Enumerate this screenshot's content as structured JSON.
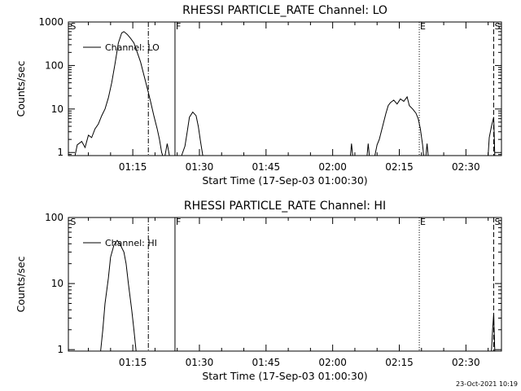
{
  "timestamp": "23-Oct-2021 10:19",
  "chart_data": [
    {
      "type": "line",
      "title": "RHESSI PARTICLE_RATE Channel: LO",
      "xlabel": "Start Time (17-Sep-03 01:00:30)",
      "ylabel": "Counts/sec",
      "yscale": "log",
      "ylim": [
        0.85,
        1000
      ],
      "xlim": [
        "01:00:30",
        "02:38:00"
      ],
      "x_ticks": [
        "01:15",
        "01:30",
        "01:45",
        "02:00",
        "02:15",
        "02:30"
      ],
      "y_ticks": [
        "1",
        "10",
        "100",
        "1000"
      ],
      "legend": {
        "label": "Channel: LO",
        "placement": "top-left"
      },
      "markers": [
        {
          "label": "S",
          "time": "01:00:45",
          "style": "none"
        },
        {
          "label": "",
          "time": "01:18:30",
          "style": "dashdot"
        },
        {
          "label": "F",
          "time": "01:24:30",
          "style": "solid"
        },
        {
          "label": "E",
          "time": "02:19:30",
          "style": "dotted"
        },
        {
          "label": "S",
          "time": "02:36:15",
          "style": "dashed"
        }
      ],
      "series": [
        {
          "name": "Channel: LO",
          "segments": [
            [
              [
                "01:02:00",
                0.85
              ],
              [
                "01:02:30",
                1.5
              ],
              [
                "01:03:30",
                1.8
              ],
              [
                "01:04:15",
                1.3
              ],
              [
                "01:05:00",
                2.5
              ],
              [
                "01:05:45",
                2.2
              ],
              [
                "01:06:30",
                3.5
              ],
              [
                "01:07:15",
                4.5
              ],
              [
                "01:08:00",
                7
              ],
              [
                "01:08:45",
                10
              ],
              [
                "01:09:30",
                18
              ],
              [
                "01:10:15",
                40
              ],
              [
                "01:11:00",
                110
              ],
              [
                "01:11:45",
                330
              ],
              [
                "01:12:30",
                560
              ],
              [
                "01:13:00",
                600
              ],
              [
                "01:13:45",
                520
              ],
              [
                "01:14:30",
                420
              ],
              [
                "01:15:15",
                330
              ],
              [
                "01:16:00",
                200
              ],
              [
                "01:16:45",
                120
              ],
              [
                "01:17:30",
                60
              ],
              [
                "01:18:15",
                30
              ],
              [
                "01:19:00",
                15
              ],
              [
                "01:19:45",
                7
              ],
              [
                "01:20:30",
                3.5
              ],
              [
                "01:21:00",
                2
              ],
              [
                "01:21:30",
                1
              ],
              [
                "01:21:45",
                0.85
              ]
            ],
            [
              [
                "01:22:15",
                0.85
              ],
              [
                "01:22:45",
                1.6
              ],
              [
                "01:23:15",
                0.85
              ]
            ],
            [
              [
                "01:26:00",
                0.85
              ],
              [
                "01:26:45",
                1.4
              ],
              [
                "01:27:15",
                3
              ],
              [
                "01:27:45",
                6.5
              ],
              [
                "01:28:30",
                8.5
              ],
              [
                "01:29:15",
                7
              ],
              [
                "01:29:45",
                4
              ],
              [
                "01:30:15",
                1.8
              ],
              [
                "01:30:45",
                0.85
              ]
            ],
            [
              [
                "02:04:00",
                0.85
              ],
              [
                "02:04:15",
                1.6
              ],
              [
                "02:04:30",
                0.85
              ]
            ],
            [
              [
                "02:07:45",
                0.85
              ],
              [
                "02:08:00",
                1.6
              ],
              [
                "02:08:15",
                0.85
              ]
            ],
            [
              [
                "02:09:30",
                0.85
              ],
              [
                "02:10:00",
                1.5
              ],
              [
                "02:10:30",
                2
              ],
              [
                "02:11:15",
                4
              ],
              [
                "02:12:00",
                8
              ],
              [
                "02:12:30",
                12
              ],
              [
                "02:13:00",
                14
              ],
              [
                "02:13:45",
                16
              ],
              [
                "02:14:30",
                13
              ],
              [
                "02:15:15",
                17
              ],
              [
                "02:16:00",
                15
              ],
              [
                "02:16:45",
                19
              ],
              [
                "02:17:15",
                12
              ],
              [
                "02:18:00",
                10
              ],
              [
                "02:18:45",
                8
              ],
              [
                "02:19:15",
                6
              ],
              [
                "02:19:45",
                3.5
              ],
              [
                "02:20:15",
                1.5
              ],
              [
                "02:20:30",
                0.85
              ]
            ],
            [
              [
                "02:21:00",
                0.85
              ],
              [
                "02:21:15",
                1.6
              ],
              [
                "02:21:30",
                0.85
              ]
            ],
            [
              [
                "02:35:00",
                0.85
              ],
              [
                "02:35:15",
                2.2
              ],
              [
                "02:35:45",
                4
              ],
              [
                "02:36:15",
                6.5
              ],
              [
                "02:36:30",
                0.85
              ]
            ]
          ]
        }
      ]
    },
    {
      "type": "line",
      "title": "RHESSI PARTICLE_RATE Channel: HI",
      "xlabel": "Start Time (17-Sep-03 01:00:30)",
      "ylabel": "Counts/sec",
      "yscale": "log",
      "ylim": [
        0.95,
        100
      ],
      "xlim": [
        "01:00:30",
        "02:38:00"
      ],
      "x_ticks": [
        "01:15",
        "01:30",
        "01:45",
        "02:00",
        "02:15",
        "02:30"
      ],
      "y_ticks": [
        "1",
        "10",
        "100"
      ],
      "legend": {
        "label": "Channel: HI",
        "placement": "top-left"
      },
      "markers": [
        {
          "label": "S",
          "time": "01:00:45",
          "style": "none"
        },
        {
          "label": "",
          "time": "01:18:30",
          "style": "dashdot"
        },
        {
          "label": "F",
          "time": "01:24:30",
          "style": "solid"
        },
        {
          "label": "E",
          "time": "02:19:30",
          "style": "dotted"
        },
        {
          "label": "S",
          "time": "02:36:15",
          "style": "dashed"
        }
      ],
      "series": [
        {
          "name": "Channel: HI",
          "segments": [
            [
              [
                "01:07:45",
                0.95
              ],
              [
                "01:08:15",
                2
              ],
              [
                "01:08:45",
                5
              ],
              [
                "01:09:30",
                12
              ],
              [
                "01:10:00",
                25
              ],
              [
                "01:10:45",
                38
              ],
              [
                "01:11:30",
                45
              ],
              [
                "01:12:15",
                38
              ],
              [
                "01:13:00",
                30
              ],
              [
                "01:13:30",
                20
              ],
              [
                "01:14:00",
                10
              ],
              [
                "01:14:45",
                4
              ],
              [
                "01:15:15",
                2
              ],
              [
                "01:15:45",
                0.95
              ]
            ],
            [
              [
                "02:35:45",
                0.95
              ],
              [
                "02:36:00",
                2
              ],
              [
                "02:36:15",
                3.5
              ],
              [
                "02:36:30",
                0.95
              ]
            ]
          ]
        }
      ]
    }
  ]
}
